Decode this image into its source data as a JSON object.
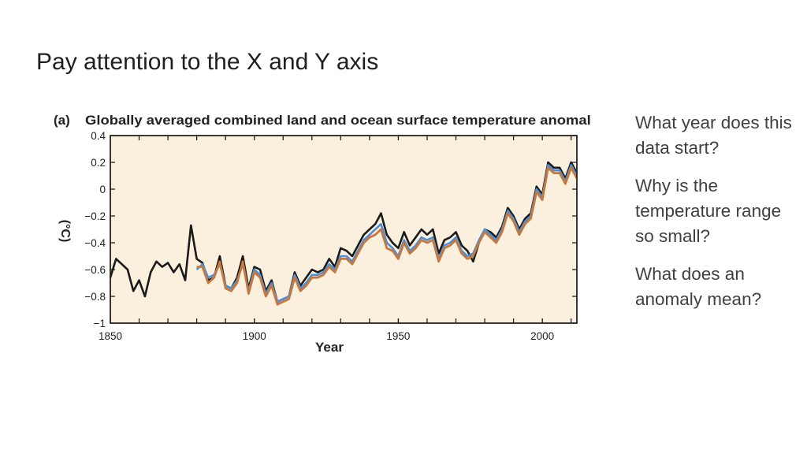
{
  "slide": {
    "title": "Pay attention to the X and Y axis"
  },
  "questions": [
    "What year does this data start?",
    "Why is the temperature range so small?",
    "What does an anomaly mean?"
  ],
  "chart_data": {
    "type": "line",
    "panel_label": "(a)",
    "title": "Globally averaged combined land and ocean surface temperature anomaly",
    "xlabel": "Year",
    "ylabel": "(°C)",
    "xlim": [
      1850,
      2012
    ],
    "ylim": [
      -1,
      0.4
    ],
    "xticks": [
      1850,
      1900,
      1950,
      2000
    ],
    "yticks": [
      0.4,
      0.2,
      0,
      -0.2,
      -0.4,
      -0.6,
      -0.8,
      -1
    ],
    "ytick_labels": [
      "0.4",
      "0.2",
      "0",
      "−0.2",
      "−0.4",
      "−0.6",
      "−0.8",
      "−1"
    ],
    "background": "#fbf0dd",
    "colors": [
      "#1a1a1a",
      "#4a90d9",
      "#c8783c"
    ],
    "series": [
      {
        "x": [
          1850,
          1852,
          1854,
          1856,
          1858,
          1860,
          1862,
          1864,
          1866,
          1868,
          1870,
          1872,
          1874,
          1876,
          1878,
          1880,
          1882,
          1884,
          1886,
          1888,
          1890,
          1892,
          1894,
          1896,
          1898,
          1900,
          1902,
          1904,
          1906,
          1908,
          1910,
          1912,
          1914,
          1916,
          1918,
          1920,
          1922,
          1924,
          1926,
          1928,
          1930,
          1932,
          1934,
          1936,
          1938,
          1940,
          1942,
          1944,
          1946,
          1948,
          1950,
          1952,
          1954,
          1956,
          1958,
          1960,
          1962,
          1964,
          1966,
          1968,
          1970,
          1972,
          1974,
          1976,
          1978,
          1980,
          1982,
          1984,
          1986,
          1988,
          1990,
          1992,
          1994,
          1996,
          1998,
          2000,
          2002,
          2004,
          2006,
          2008,
          2010,
          2012
        ],
        "values": [
          -0.66,
          -0.52,
          -0.56,
          -0.6,
          -0.76,
          -0.68,
          -0.8,
          -0.62,
          -0.54,
          -0.58,
          -0.55,
          -0.62,
          -0.56,
          -0.68,
          -0.27,
          -0.52,
          -0.55,
          -0.68,
          -0.66,
          -0.5,
          -0.72,
          -0.74,
          -0.66,
          -0.5,
          -0.74,
          -0.58,
          -0.6,
          -0.76,
          -0.68,
          -0.84,
          -0.82,
          -0.8,
          -0.62,
          -0.72,
          -0.66,
          -0.6,
          -0.62,
          -0.6,
          -0.52,
          -0.58,
          -0.44,
          -0.46,
          -0.5,
          -0.42,
          -0.34,
          -0.3,
          -0.26,
          -0.18,
          -0.34,
          -0.4,
          -0.44,
          -0.32,
          -0.42,
          -0.36,
          -0.3,
          -0.34,
          -0.3,
          -0.48,
          -0.38,
          -0.36,
          -0.32,
          -0.42,
          -0.46,
          -0.54,
          -0.4,
          -0.3,
          -0.32,
          -0.36,
          -0.28,
          -0.14,
          -0.2,
          -0.3,
          -0.22,
          -0.18,
          0.02,
          -0.04,
          0.2,
          0.16,
          0.16,
          0.08,
          0.2,
          0.12
        ]
      },
      {
        "x": [
          1880,
          1882,
          1884,
          1886,
          1888,
          1890,
          1892,
          1894,
          1896,
          1898,
          1900,
          1902,
          1904,
          1906,
          1908,
          1910,
          1912,
          1914,
          1916,
          1918,
          1920,
          1922,
          1924,
          1926,
          1928,
          1930,
          1932,
          1934,
          1936,
          1938,
          1940,
          1942,
          1944,
          1946,
          1948,
          1950,
          1952,
          1954,
          1956,
          1958,
          1960,
          1962,
          1964,
          1966,
          1968,
          1970,
          1972,
          1974,
          1976,
          1978,
          1980,
          1982,
          1984,
          1986,
          1988,
          1990,
          1992,
          1994,
          1996,
          1998,
          2000,
          2002,
          2004,
          2006,
          2008,
          2010,
          2012
        ],
        "values": [
          -0.6,
          -0.56,
          -0.66,
          -0.64,
          -0.56,
          -0.72,
          -0.74,
          -0.68,
          -0.56,
          -0.76,
          -0.6,
          -0.64,
          -0.78,
          -0.7,
          -0.84,
          -0.82,
          -0.8,
          -0.64,
          -0.74,
          -0.7,
          -0.64,
          -0.64,
          -0.62,
          -0.56,
          -0.6,
          -0.5,
          -0.5,
          -0.54,
          -0.46,
          -0.38,
          -0.34,
          -0.3,
          -0.26,
          -0.4,
          -0.44,
          -0.5,
          -0.38,
          -0.46,
          -0.42,
          -0.36,
          -0.38,
          -0.36,
          -0.52,
          -0.42,
          -0.4,
          -0.36,
          -0.46,
          -0.5,
          -0.48,
          -0.38,
          -0.3,
          -0.34,
          -0.38,
          -0.3,
          -0.16,
          -0.22,
          -0.32,
          -0.24,
          -0.2,
          0.0,
          -0.06,
          0.18,
          0.14,
          0.14,
          0.06,
          0.18,
          0.1
        ]
      },
      {
        "x": [
          1880,
          1882,
          1884,
          1886,
          1888,
          1890,
          1892,
          1894,
          1896,
          1898,
          1900,
          1902,
          1904,
          1906,
          1908,
          1910,
          1912,
          1914,
          1916,
          1918,
          1920,
          1922,
          1924,
          1926,
          1928,
          1930,
          1932,
          1934,
          1936,
          1938,
          1940,
          1942,
          1944,
          1946,
          1948,
          1950,
          1952,
          1954,
          1956,
          1958,
          1960,
          1962,
          1964,
          1966,
          1968,
          1970,
          1972,
          1974,
          1976,
          1978,
          1980,
          1982,
          1984,
          1986,
          1988,
          1990,
          1992,
          1994,
          1996,
          1998,
          2000,
          2002,
          2004,
          2006,
          2008,
          2010,
          2012
        ],
        "values": [
          -0.58,
          -0.58,
          -0.7,
          -0.66,
          -0.54,
          -0.74,
          -0.76,
          -0.7,
          -0.54,
          -0.78,
          -0.62,
          -0.66,
          -0.8,
          -0.72,
          -0.86,
          -0.84,
          -0.82,
          -0.66,
          -0.76,
          -0.72,
          -0.66,
          -0.66,
          -0.64,
          -0.58,
          -0.62,
          -0.52,
          -0.52,
          -0.56,
          -0.48,
          -0.4,
          -0.36,
          -0.34,
          -0.3,
          -0.44,
          -0.46,
          -0.52,
          -0.4,
          -0.48,
          -0.44,
          -0.38,
          -0.4,
          -0.38,
          -0.54,
          -0.44,
          -0.42,
          -0.38,
          -0.48,
          -0.52,
          -0.5,
          -0.4,
          -0.32,
          -0.36,
          -0.4,
          -0.32,
          -0.18,
          -0.24,
          -0.34,
          -0.26,
          -0.22,
          -0.02,
          -0.08,
          0.16,
          0.12,
          0.12,
          0.04,
          0.16,
          0.08
        ]
      }
    ]
  }
}
